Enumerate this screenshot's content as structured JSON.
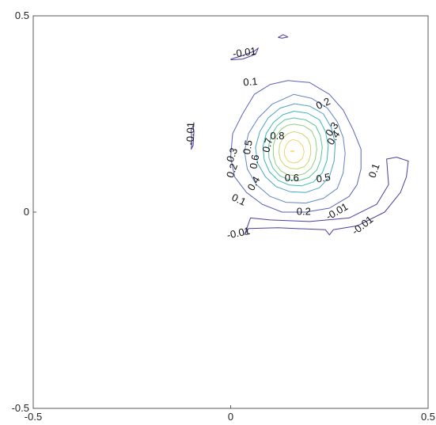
{
  "chart_data": {
    "type": "contour",
    "title": "",
    "xlabel": "",
    "ylabel": "",
    "xlim": [
      -0.5,
      0.5
    ],
    "ylim": [
      -0.5,
      0.5
    ],
    "grid": false,
    "x_ticks": [
      {
        "value": -0.5,
        "label": "-0.5"
      },
      {
        "value": 0,
        "label": "0"
      },
      {
        "value": 0.5,
        "label": "0.5"
      }
    ],
    "y_ticks": [
      {
        "value": 0.5,
        "label": "0.5"
      },
      {
        "value": 0,
        "label": "0"
      },
      {
        "value": -0.5,
        "label": "-0.5"
      }
    ],
    "levels": [
      -0.01,
      0.1,
      0.2,
      0.3,
      0.4,
      0.5,
      0.6,
      0.7,
      0.8
    ],
    "level_colors": {
      "-0.01": "#4a3f9a",
      "0.1": "#5a62b8",
      "0.2": "#5f86c4",
      "0.3": "#4aa3c4",
      "0.4": "#3cb9b3",
      "0.5": "#58c69a",
      "0.6": "#8fd17e",
      "0.7": "#c9d46b",
      "0.8": "#e8d86a"
    },
    "peak": {
      "x": 0.155,
      "y": 0.155,
      "value": 0.85
    },
    "contours": [
      {
        "level": -0.01,
        "points": [
          [
            0.12,
            0.445
          ],
          [
            0.133,
            0.452
          ],
          [
            0.145,
            0.446
          ],
          [
            0.13,
            0.443
          ],
          [
            0.12,
            0.445
          ]
        ]
      },
      {
        "level": -0.01,
        "points": [
          [
            0.0,
            0.39
          ],
          [
            0.025,
            0.397
          ],
          [
            0.06,
            0.41
          ],
          [
            0.07,
            0.418
          ],
          [
            0.063,
            0.402
          ],
          [
            0.03,
            0.39
          ],
          [
            0.0,
            0.388
          ]
        ]
      },
      {
        "level": -0.01,
        "points": [
          [
            -0.1,
            0.21
          ],
          [
            -0.095,
            0.22
          ],
          [
            -0.093,
            0.205
          ],
          [
            -0.095,
            0.17
          ],
          [
            -0.1,
            0.16
          ],
          [
            -0.098,
            0.175
          ],
          [
            -0.1,
            0.21
          ]
        ]
      },
      {
        "level": -0.01,
        "points": [
          [
            0.035,
            -0.058
          ],
          [
            0.045,
            -0.042
          ],
          [
            0.12,
            -0.04
          ],
          [
            0.24,
            -0.045
          ],
          [
            0.25,
            -0.058
          ],
          [
            0.26,
            -0.045
          ],
          [
            0.32,
            -0.035
          ],
          [
            0.39,
            0.0
          ],
          [
            0.43,
            0.05
          ],
          [
            0.445,
            0.09
          ],
          [
            0.45,
            0.13
          ],
          [
            0.42,
            0.14
          ],
          [
            0.395,
            0.135
          ],
          [
            0.4,
            0.07
          ],
          [
            0.37,
            0.02
          ],
          [
            0.3,
            -0.015
          ],
          [
            0.2,
            -0.024
          ],
          [
            0.1,
            -0.02
          ],
          [
            0.05,
            -0.015
          ],
          [
            0.035,
            -0.058
          ]
        ]
      },
      {
        "level": 0.1,
        "points": [
          [
            0.145,
            0.335
          ],
          [
            0.2,
            0.33
          ],
          [
            0.25,
            0.3
          ],
          [
            0.285,
            0.26
          ],
          [
            0.31,
            0.21
          ],
          [
            0.33,
            0.16
          ],
          [
            0.33,
            0.11
          ],
          [
            0.32,
            0.07
          ],
          [
            0.3,
            0.04
          ],
          [
            0.25,
            0.01
          ],
          [
            0.19,
            0.0
          ],
          [
            0.13,
            0.0
          ],
          [
            0.08,
            0.02
          ],
          [
            0.04,
            0.05
          ],
          [
            0.01,
            0.09
          ],
          [
            0.0,
            0.14
          ],
          [
            0.005,
            0.2
          ],
          [
            0.03,
            0.25
          ],
          [
            0.06,
            0.3
          ],
          [
            0.1,
            0.325
          ],
          [
            0.145,
            0.335
          ]
        ]
      },
      {
        "level": 0.2,
        "points": [
          [
            0.16,
            0.3
          ],
          [
            0.205,
            0.29
          ],
          [
            0.245,
            0.265
          ],
          [
            0.27,
            0.23
          ],
          [
            0.285,
            0.19
          ],
          [
            0.29,
            0.15
          ],
          [
            0.285,
            0.1
          ],
          [
            0.27,
            0.06
          ],
          [
            0.235,
            0.035
          ],
          [
            0.19,
            0.023
          ],
          [
            0.14,
            0.025
          ],
          [
            0.1,
            0.04
          ],
          [
            0.065,
            0.07
          ],
          [
            0.042,
            0.11
          ],
          [
            0.035,
            0.155
          ],
          [
            0.045,
            0.2
          ],
          [
            0.07,
            0.24
          ],
          [
            0.105,
            0.275
          ],
          [
            0.16,
            0.3
          ]
        ]
      },
      {
        "level": 0.3,
        "points": [
          [
            0.162,
            0.276
          ],
          [
            0.2,
            0.27
          ],
          [
            0.235,
            0.25
          ],
          [
            0.255,
            0.215
          ],
          [
            0.265,
            0.175
          ],
          [
            0.262,
            0.13
          ],
          [
            0.25,
            0.09
          ],
          [
            0.225,
            0.062
          ],
          [
            0.19,
            0.05
          ],
          [
            0.15,
            0.052
          ],
          [
            0.115,
            0.065
          ],
          [
            0.088,
            0.09
          ],
          [
            0.068,
            0.125
          ],
          [
            0.063,
            0.165
          ],
          [
            0.074,
            0.205
          ],
          [
            0.095,
            0.24
          ],
          [
            0.125,
            0.265
          ],
          [
            0.162,
            0.276
          ]
        ]
      },
      {
        "level": 0.4,
        "points": [
          [
            0.16,
            0.257
          ],
          [
            0.195,
            0.252
          ],
          [
            0.225,
            0.235
          ],
          [
            0.24,
            0.205
          ],
          [
            0.247,
            0.17
          ],
          [
            0.244,
            0.132
          ],
          [
            0.232,
            0.1
          ],
          [
            0.21,
            0.077
          ],
          [
            0.18,
            0.067
          ],
          [
            0.148,
            0.069
          ],
          [
            0.12,
            0.081
          ],
          [
            0.098,
            0.103
          ],
          [
            0.085,
            0.133
          ],
          [
            0.082,
            0.168
          ],
          [
            0.09,
            0.2
          ],
          [
            0.108,
            0.228
          ],
          [
            0.132,
            0.248
          ],
          [
            0.16,
            0.257
          ]
        ]
      },
      {
        "level": 0.5,
        "points": [
          [
            0.16,
            0.24
          ],
          [
            0.19,
            0.235
          ],
          [
            0.215,
            0.22
          ],
          [
            0.227,
            0.195
          ],
          [
            0.232,
            0.165
          ],
          [
            0.228,
            0.133
          ],
          [
            0.218,
            0.107
          ],
          [
            0.198,
            0.088
          ],
          [
            0.173,
            0.08
          ],
          [
            0.147,
            0.082
          ],
          [
            0.124,
            0.093
          ],
          [
            0.107,
            0.112
          ],
          [
            0.097,
            0.138
          ],
          [
            0.096,
            0.168
          ],
          [
            0.103,
            0.196
          ],
          [
            0.118,
            0.22
          ],
          [
            0.137,
            0.235
          ],
          [
            0.16,
            0.24
          ]
        ]
      },
      {
        "level": 0.6,
        "points": [
          [
            0.16,
            0.224
          ],
          [
            0.185,
            0.22
          ],
          [
            0.205,
            0.207
          ],
          [
            0.215,
            0.185
          ],
          [
            0.218,
            0.16
          ],
          [
            0.214,
            0.134
          ],
          [
            0.204,
            0.112
          ],
          [
            0.187,
            0.098
          ],
          [
            0.167,
            0.093
          ],
          [
            0.145,
            0.095
          ],
          [
            0.127,
            0.105
          ],
          [
            0.114,
            0.122
          ],
          [
            0.108,
            0.145
          ],
          [
            0.108,
            0.17
          ],
          [
            0.115,
            0.193
          ],
          [
            0.128,
            0.211
          ],
          [
            0.143,
            0.221
          ],
          [
            0.16,
            0.224
          ]
        ]
      },
      {
        "level": 0.7,
        "points": [
          [
            0.16,
            0.205
          ],
          [
            0.18,
            0.2
          ],
          [
            0.195,
            0.188
          ],
          [
            0.202,
            0.17
          ],
          [
            0.203,
            0.15
          ],
          [
            0.198,
            0.13
          ],
          [
            0.187,
            0.116
          ],
          [
            0.17,
            0.11
          ],
          [
            0.152,
            0.111
          ],
          [
            0.137,
            0.119
          ],
          [
            0.126,
            0.133
          ],
          [
            0.122,
            0.152
          ],
          [
            0.124,
            0.172
          ],
          [
            0.132,
            0.189
          ],
          [
            0.145,
            0.2
          ],
          [
            0.16,
            0.205
          ]
        ]
      },
      {
        "level": 0.8,
        "points": [
          [
            0.158,
            0.185
          ],
          [
            0.173,
            0.18
          ],
          [
            0.183,
            0.168
          ],
          [
            0.186,
            0.153
          ],
          [
            0.182,
            0.138
          ],
          [
            0.172,
            0.128
          ],
          [
            0.158,
            0.125
          ],
          [
            0.145,
            0.13
          ],
          [
            0.137,
            0.143
          ],
          [
            0.136,
            0.158
          ],
          [
            0.141,
            0.172
          ],
          [
            0.149,
            0.181
          ],
          [
            0.158,
            0.185
          ]
        ]
      }
    ],
    "labels": [
      {
        "text": "-0.01",
        "x": 0.035,
        "y": 0.405,
        "angle": -8
      },
      {
        "text": "-0.01",
        "x": -0.1,
        "y": 0.2,
        "angle": -88
      },
      {
        "text": "-0.01",
        "x": 0.02,
        "y": -0.055,
        "angle": -12
      },
      {
        "text": "-0.01",
        "x": 0.27,
        "y": 0.0,
        "angle": -30
      },
      {
        "text": "-0.01",
        "x": 0.335,
        "y": -0.035,
        "angle": -38
      },
      {
        "text": "0.1",
        "x": 0.05,
        "y": 0.33,
        "angle": -5
      },
      {
        "text": "0.1",
        "x": 0.365,
        "y": 0.105,
        "angle": -70
      },
      {
        "text": "0.1",
        "x": 0.02,
        "y": 0.03,
        "angle": 25
      },
      {
        "text": "0.2",
        "x": 0.235,
        "y": 0.275,
        "angle": -25
      },
      {
        "text": "0.2",
        "x": 0.185,
        "y": 0.0,
        "angle": 0
      },
      {
        "text": "0.2",
        "x": 0.005,
        "y": 0.105,
        "angle": -70
      },
      {
        "text": "0.3",
        "x": 0.258,
        "y": 0.21,
        "angle": -55
      },
      {
        "text": "0.3",
        "x": 0.005,
        "y": 0.145,
        "angle": -70
      },
      {
        "text": "0.4",
        "x": 0.262,
        "y": 0.188,
        "angle": -55
      },
      {
        "text": "0.4",
        "x": 0.06,
        "y": 0.072,
        "angle": -60
      },
      {
        "text": "0.5",
        "x": 0.045,
        "y": 0.165,
        "angle": -80
      },
      {
        "text": "0.5",
        "x": 0.235,
        "y": 0.085,
        "angle": -10
      },
      {
        "text": "0.6",
        "x": 0.062,
        "y": 0.128,
        "angle": -80
      },
      {
        "text": "0.6",
        "x": 0.155,
        "y": 0.085,
        "angle": 0
      },
      {
        "text": "0.7",
        "x": 0.095,
        "y": 0.17,
        "angle": -75
      },
      {
        "text": "0.8",
        "x": 0.118,
        "y": 0.192,
        "angle": 0
      }
    ]
  }
}
